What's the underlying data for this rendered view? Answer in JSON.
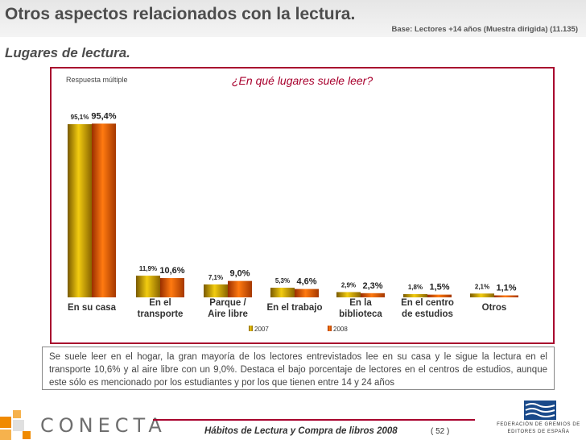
{
  "page": {
    "title": "Otros aspectos relacionados con la lectura.",
    "base_note": "Base: Lectores +14 años (Muestra dirigida) (11.135)",
    "section_title": "Lugares de lectura."
  },
  "chart_data": {
    "type": "bar",
    "title": "¿En qué lugares suele leer?",
    "subtitle": "Respuesta múltiple",
    "categories": [
      [
        "En su casa"
      ],
      [
        "En el",
        "transporte"
      ],
      [
        "Parque /",
        "Aire libre"
      ],
      [
        "En el trabajo"
      ],
      [
        "En la",
        "biblioteca"
      ],
      [
        "En el centro",
        "de estudios"
      ],
      [
        "Otros"
      ]
    ],
    "series": [
      {
        "name": "2007",
        "values": [
          95.1,
          11.9,
          7.1,
          5.3,
          2.9,
          1.8,
          2.1
        ],
        "labels": [
          "95,1%",
          "11,9%",
          "7,1%",
          "5,3%",
          "2,9%",
          "1,8%",
          "2,1%"
        ],
        "color": "#c8a000"
      },
      {
        "name": "2008",
        "values": [
          95.4,
          10.6,
          9.0,
          4.6,
          2.3,
          1.5,
          1.1
        ],
        "labels": [
          "95,4%",
          "10,6%",
          "9,0%",
          "4,6%",
          "2,3%",
          "1,5%",
          "1,1%"
        ],
        "color": "#e05a00"
      }
    ],
    "ylim": [
      0,
      100
    ],
    "grid": false,
    "legend": "bottom"
  },
  "summary": "Se suele leer en el hogar, la gran mayoría de los lectores entrevistados lee en su casa y le sigue la lectura en el transporte 10,6% y al aire libre con un 9,0%. Destaca el bajo porcentaje de lectores en el centros de estudios, aunque este sólo es mencionado por los estudiantes y por los que tienen entre 14 y 24 años",
  "footer": {
    "publication": "Hábitos de Lectura y Compra de libros 2008",
    "page_number": "( 52 )",
    "logo_left": "CONECTA",
    "logo_right": "FEDERACIÓN DE GREMIOS DE EDITORES DE ESPAÑA"
  },
  "colors": {
    "accent": "#a8002d",
    "series_2007": "#c8a000",
    "series_2008": "#e05a00"
  }
}
